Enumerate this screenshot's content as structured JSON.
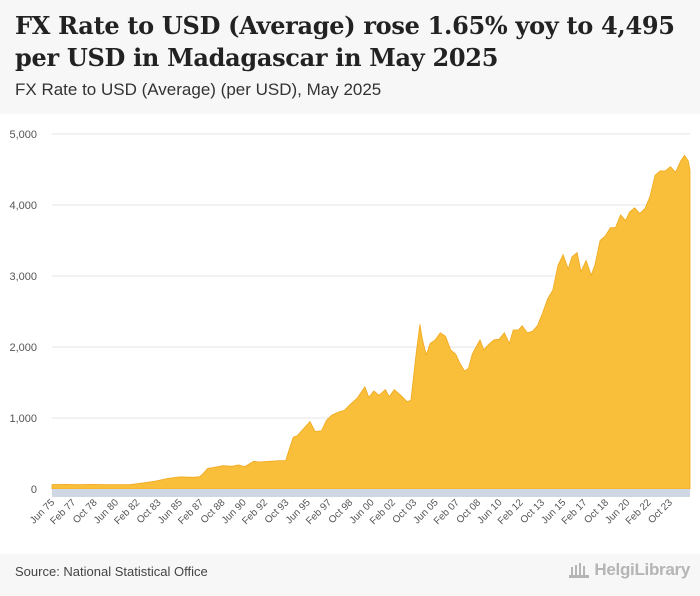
{
  "header": {
    "title": "FX Rate to USD (Average) rose 1.65% yoy to 4,495 per USD in Madagascar in May 2025",
    "subtitle": "FX Rate to USD (Average) (per USD), May 2025"
  },
  "footer": {
    "source": "Source: National Statistical Office",
    "brand": "HelgiLibrary"
  },
  "colors": {
    "fill": "#f9bf3b",
    "stroke": "#f0a81c",
    "grid": "#e6e6e6"
  },
  "chart_data": {
    "type": "area",
    "title": "FX Rate to USD (Average) rose 1.65% yoy to 4,495 per USD in Madagascar in May 2025",
    "subtitle": "FX Rate to USD (Average) (per USD), May 2025",
    "xlabel": "",
    "ylabel": "",
    "ylim": [
      0,
      5000
    ],
    "yticks": [
      0,
      1000,
      2000,
      3000,
      4000,
      5000
    ],
    "ytick_labels": [
      "0",
      "1,000",
      "2,000",
      "3,000",
      "4,000",
      "5,000"
    ],
    "grid": true,
    "xlim": [
      1975.42,
      2025.33
    ],
    "xtick_positions": [
      1975.42,
      1977.08,
      1978.75,
      1980.42,
      1982.08,
      1983.75,
      1985.42,
      1987.08,
      1988.75,
      1990.42,
      1992.08,
      1993.75,
      1995.42,
      1997.08,
      1998.75,
      2000.42,
      2002.08,
      2003.75,
      2005.42,
      2007.08,
      2008.75,
      2010.42,
      2012.08,
      2013.75,
      2015.42,
      2017.08,
      2018.75,
      2020.42,
      2022.08,
      2023.75
    ],
    "xtick_labels": [
      "Jun 75",
      "Feb 77",
      "Oct 78",
      "Jun 80",
      "Feb 82",
      "Oct 83",
      "Jun 85",
      "Feb 87",
      "Oct 88",
      "Jun 90",
      "Feb 92",
      "Oct 93",
      "Jun 95",
      "Feb 97",
      "Oct 98",
      "Jun 00",
      "Feb 02",
      "Oct 03",
      "Jun 05",
      "Feb 07",
      "Oct 08",
      "Jun 10",
      "Feb 12",
      "Oct 13",
      "Jun 15",
      "Feb 17",
      "Oct 18",
      "Jun 20",
      "Feb 22",
      "Oct 23"
    ],
    "series": [
      {
        "name": "FX Rate to USD (Average)",
        "x": [
          1975.42,
          1976.5,
          1977.5,
          1978.5,
          1979.5,
          1980.42,
          1981.5,
          1982.5,
          1983.5,
          1984.5,
          1985.42,
          1986.5,
          1987.0,
          1987.2,
          1987.6,
          1988.0,
          1988.8,
          1989.5,
          1990.0,
          1990.5,
          1991.2,
          1991.6,
          1992.5,
          1993.2,
          1993.7,
          1994.0,
          1994.3,
          1994.6,
          1995.0,
          1995.4,
          1995.6,
          1996.0,
          1996.5,
          1996.9,
          1997.3,
          1997.8,
          1998.3,
          1998.8,
          1999.3,
          1999.6,
          1999.9,
          2000.2,
          2000.6,
          2001.0,
          2001.5,
          2001.8,
          2002.2,
          2002.7,
          2003.2,
          2003.5,
          2003.9,
          2004.2,
          2004.4,
          2004.7,
          2005.0,
          2005.4,
          2005.8,
          2006.2,
          2006.6,
          2007.0,
          2007.3,
          2007.7,
          2008.0,
          2008.3,
          2008.6,
          2008.9,
          2009.2,
          2009.6,
          2010.0,
          2010.4,
          2010.8,
          2011.2,
          2011.5,
          2011.9,
          2012.2,
          2012.6,
          2013.0,
          2013.4,
          2013.8,
          2014.2,
          2014.6,
          2015.0,
          2015.4,
          2015.8,
          2016.1,
          2016.5,
          2016.8,
          2017.2,
          2017.6,
          2017.9,
          2018.3,
          2018.7,
          2019.1,
          2019.5,
          2019.9,
          2020.3,
          2020.6,
          2021.0,
          2021.4,
          2021.8,
          2022.2,
          2022.6,
          2023.0,
          2023.4,
          2023.8,
          2024.2,
          2024.6,
          2024.9,
          2025.2,
          2025.33
        ],
        "values": [
          60,
          65,
          62,
          65,
          60,
          60,
          60,
          85,
          110,
          150,
          170,
          165,
          175,
          210,
          290,
          300,
          330,
          320,
          340,
          315,
          390,
          380,
          390,
          400,
          400,
          570,
          730,
          750,
          830,
          910,
          950,
          810,
          820,
          970,
          1040,
          1080,
          1110,
          1200,
          1280,
          1360,
          1440,
          1290,
          1380,
          1320,
          1400,
          1300,
          1400,
          1320,
          1230,
          1250,
          1900,
          2320,
          2100,
          1890,
          2050,
          2100,
          2200,
          2150,
          1960,
          1900,
          1780,
          1660,
          1700,
          1900,
          2000,
          2100,
          1960,
          2040,
          2100,
          2110,
          2200,
          2050,
          2240,
          2240,
          2300,
          2200,
          2220,
          2300,
          2480,
          2680,
          2800,
          3150,
          3300,
          3100,
          3270,
          3330,
          3060,
          3220,
          3010,
          3160,
          3500,
          3560,
          3680,
          3680,
          3860,
          3780,
          3900,
          3960,
          3880,
          3950,
          4120,
          4420,
          4480,
          4480,
          4540,
          4460,
          4620,
          4700,
          4620,
          4495
        ]
      }
    ]
  }
}
